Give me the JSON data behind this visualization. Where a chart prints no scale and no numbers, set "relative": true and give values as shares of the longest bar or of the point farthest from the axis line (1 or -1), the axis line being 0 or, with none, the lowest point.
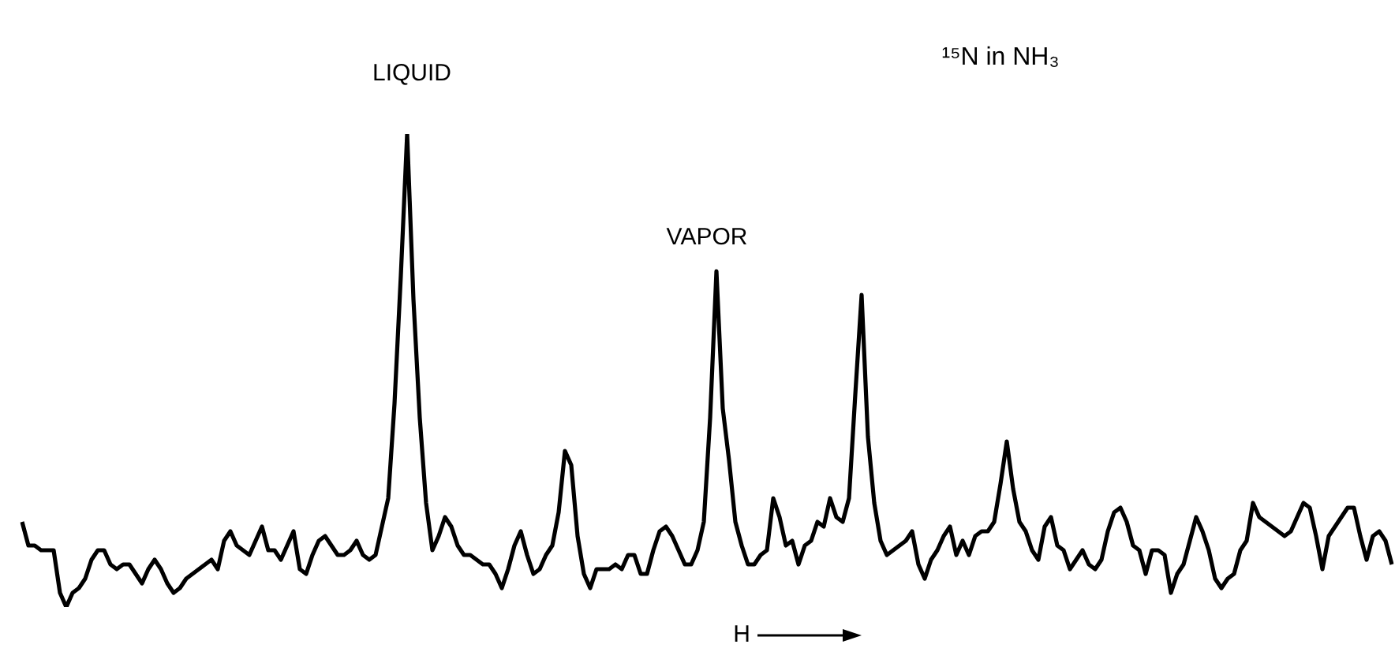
{
  "chart_data": {
    "type": "line",
    "title": "¹⁵N in NH₃",
    "relative": true,
    "legend": false,
    "marker": "none",
    "annotations": [
      "LIQUID",
      "VAPOR",
      "H"
    ],
    "categories": [
      null,
      null,
      null,
      null,
      null,
      null,
      null,
      null,
      null,
      null,
      null,
      null,
      null,
      null,
      null,
      null,
      null,
      null,
      null,
      null,
      null,
      null,
      null,
      null,
      null,
      null,
      null,
      null,
      null,
      null,
      null,
      null,
      null,
      null,
      null,
      null,
      null,
      null,
      null,
      null,
      null,
      null,
      null,
      null,
      null,
      null,
      null,
      null,
      null,
      null,
      null,
      null,
      null,
      null,
      null,
      null,
      null,
      null,
      null,
      null,
      null,
      null,
      null,
      null,
      null,
      null,
      null,
      null,
      null,
      null,
      null,
      null,
      null,
      null,
      null,
      null,
      null,
      null,
      null,
      null,
      null,
      null,
      null,
      null,
      null,
      null,
      null,
      null,
      null,
      null,
      null,
      null,
      null,
      null,
      null,
      null,
      null,
      null,
      null,
      null,
      null,
      null,
      null,
      null,
      null,
      null,
      null,
      null,
      null,
      null,
      null,
      null,
      null,
      null,
      null,
      null,
      null,
      null,
      null,
      null,
      null,
      null,
      null,
      null,
      null,
      null,
      null,
      null,
      null,
      null,
      null,
      null,
      null,
      null,
      null,
      null,
      null,
      null,
      null,
      null,
      null,
      null,
      null,
      null,
      null,
      null,
      null,
      null,
      null,
      null,
      null,
      null,
      null,
      null,
      null,
      null,
      null,
      null,
      null,
      null,
      null,
      null,
      null,
      null,
      null,
      null,
      null,
      null,
      null,
      null,
      null,
      null,
      null,
      null,
      null,
      null,
      null,
      null,
      null,
      null,
      null,
      null,
      null,
      null,
      null,
      null,
      null,
      null,
      null,
      null,
      null,
      null,
      null,
      null,
      null,
      null,
      null,
      null,
      null,
      null,
      null,
      null,
      null,
      null,
      null,
      null,
      null,
      null,
      null,
      null,
      null,
      null,
      null,
      null,
      null,
      null,
      null,
      null
    ],
    "series": [
      {
        "color": "#000000",
        "values": [
          0.18,
          0.13,
          0.13,
          0.12,
          0.12,
          0.12,
          0.03,
          0,
          0.03,
          0.04,
          0.06,
          0.1,
          0.12,
          0.12,
          0.09,
          0.08,
          0.09,
          0.09,
          0.07,
          0.05,
          0.08,
          0.1,
          0.08,
          0.05,
          0.03,
          0.04,
          0.06,
          0.07,
          0.08,
          0.09,
          0.1,
          0.08,
          0.14,
          0.16,
          0.13,
          0.12,
          0.11,
          0.14,
          0.17,
          0.12,
          0.12,
          0.1,
          0.13,
          0.16,
          0.08,
          0.07,
          0.11,
          0.14,
          0.15,
          0.13,
          0.11,
          0.11,
          0.12,
          0.14,
          0.11,
          0.1,
          0.11,
          0.17,
          0.23,
          0.43,
          0.7,
          1,
          0.65,
          0.4,
          0.22,
          0.12,
          0.15,
          0.19,
          0.17,
          0.13,
          0.11,
          0.11,
          0.1,
          0.09,
          0.09,
          0.07,
          0.04,
          0.08,
          0.13,
          0.16,
          0.11,
          0.07,
          0.08,
          0.11,
          0.13,
          0.2,
          0.33,
          0.3,
          0.15,
          0.07,
          0.04,
          0.08,
          0.08,
          0.08,
          0.09,
          0.08,
          0.11,
          0.11,
          0.07,
          0.07,
          0.12,
          0.16,
          0.17,
          0.15,
          0.12,
          0.09,
          0.09,
          0.12,
          0.18,
          0.4,
          0.71,
          0.42,
          0.31,
          0.18,
          0.13,
          0.09,
          0.09,
          0.11,
          0.12,
          0.23,
          0.19,
          0.13,
          0.14,
          0.09,
          0.13,
          0.14,
          0.18,
          0.17,
          0.23,
          0.19,
          0.18,
          0.23,
          0.45,
          0.66,
          0.36,
          0.22,
          0.14,
          0.11,
          0.12,
          0.13,
          0.14,
          0.16,
          0.09,
          0.06,
          0.1,
          0.12,
          0.15,
          0.17,
          0.11,
          0.14,
          0.11,
          0.15,
          0.16,
          0.16,
          0.18,
          0.26,
          0.35,
          0.25,
          0.18,
          0.16,
          0.12,
          0.1,
          0.17,
          0.19,
          0.13,
          0.12,
          0.08,
          0.1,
          0.12,
          0.09,
          0.08,
          0.1,
          0.16,
          0.2,
          0.21,
          0.18,
          0.13,
          0.12,
          0.07,
          0.12,
          0.12,
          0.11,
          0.03,
          0.07,
          0.09,
          0.14,
          0.19,
          0.16,
          0.12,
          0.06,
          0.04,
          0.06,
          0.07,
          0.12,
          0.14,
          0.22,
          0.19,
          0.18,
          0.17,
          0.16,
          0.15,
          0.16,
          0.19,
          0.22,
          0.21,
          0.15,
          0.08,
          0.15,
          0.17,
          0.19,
          0.21,
          0.21,
          0.15,
          0.1,
          0.15,
          0.16,
          0.14,
          0.09
        ]
      }
    ]
  }
}
